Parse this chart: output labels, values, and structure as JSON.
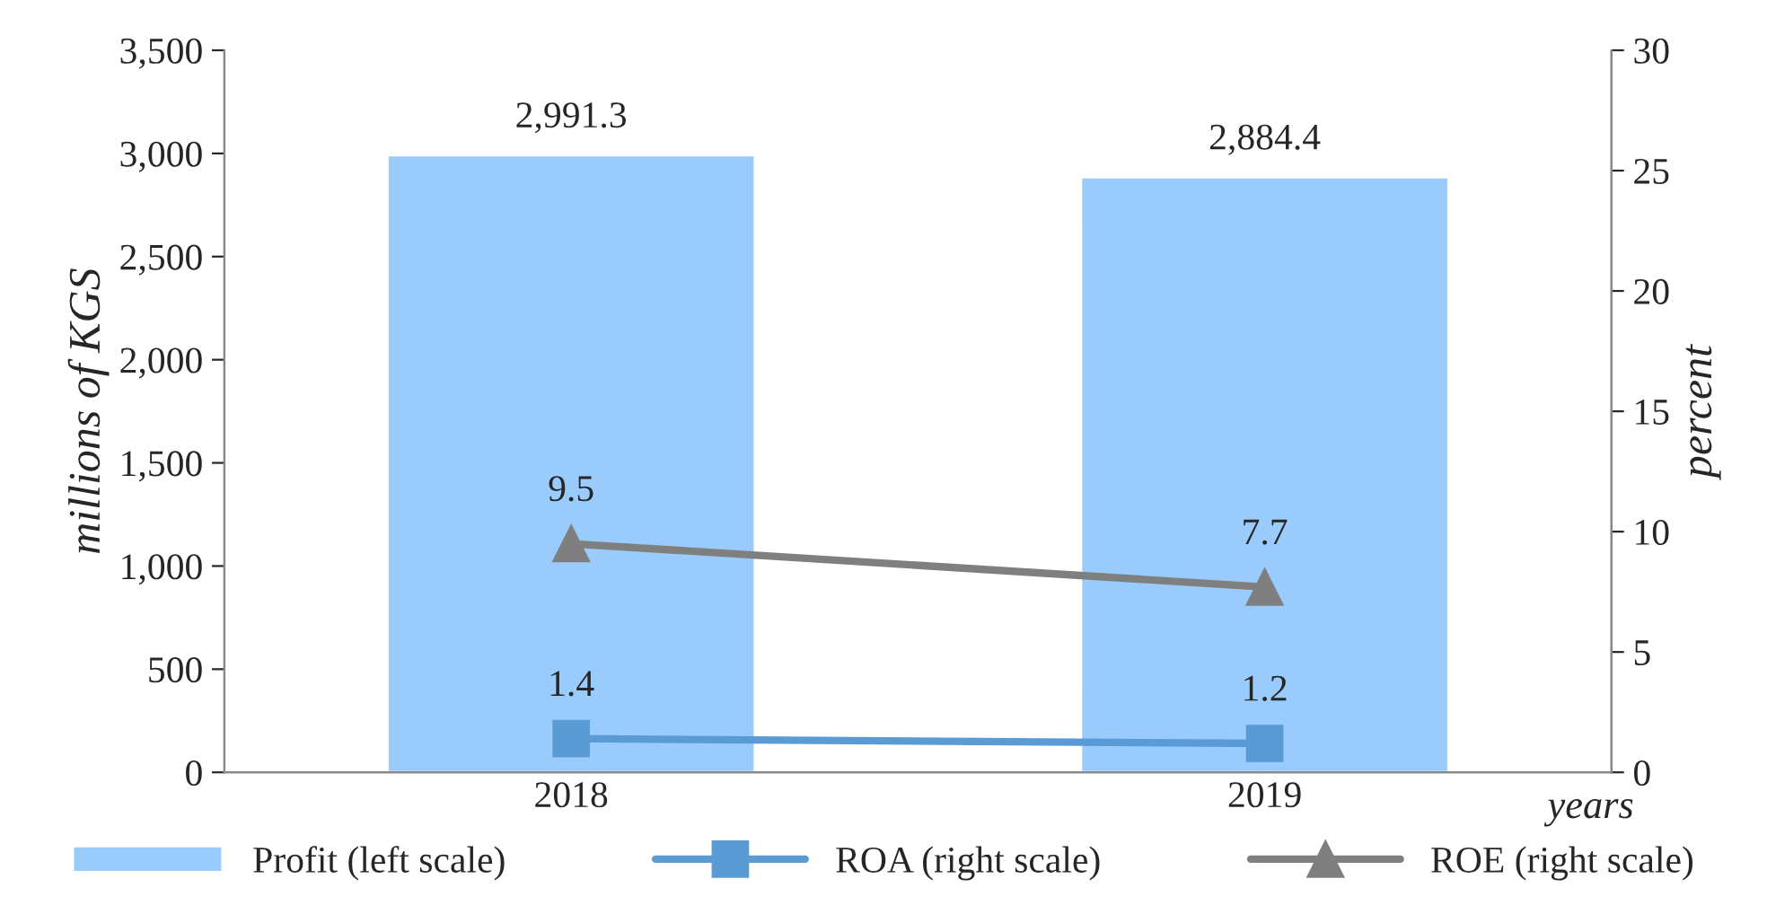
{
  "chart_data": {
    "type": "bar",
    "categories": [
      "2018",
      "2019"
    ],
    "xlabel": "years",
    "ylabel": "millions of KGS",
    "y2label": "percent",
    "series": [
      {
        "name": "Profit (left scale)",
        "color": "#99cbfd",
        "values": [
          2991.3,
          2884.4
        ],
        "value_labels": [
          "2,991.3",
          "2,884.4"
        ]
      },
      {
        "name": "ROA (right scale)",
        "type": "line",
        "axis": "y2",
        "marker": "square",
        "color": "#5b9bd5",
        "values": [
          1.4,
          1.2
        ]
      },
      {
        "name": "ROE (right scale)",
        "type": "line",
        "axis": "y2",
        "marker": "triangle",
        "color": "#7f7f7f",
        "values": [
          9.5,
          7.7
        ]
      }
    ],
    "ylim": [
      0,
      3500
    ],
    "yticks": [
      0,
      500,
      {
        "value": 1000,
        "label": "1,000"
      },
      {
        "value": 1500,
        "label": "1,500"
      },
      {
        "value": 2000,
        "label": "2,000"
      },
      {
        "value": 2500,
        "label": "2,500"
      },
      {
        "value": 3000,
        "label": "3,000"
      },
      {
        "value": 3500,
        "label": "3,500"
      }
    ],
    "y2lim": [
      0,
      30
    ],
    "y2ticks": [
      0,
      5,
      10,
      15,
      20,
      25,
      30
    ],
    "data_labels": true,
    "grid": false,
    "legend": "bottom"
  }
}
